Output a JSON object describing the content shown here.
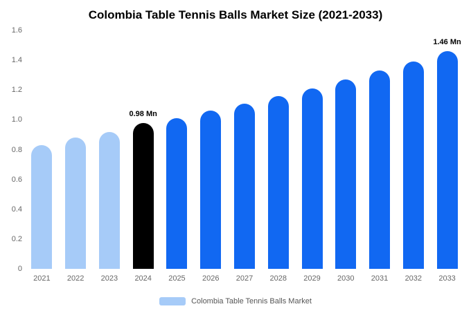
{
  "chart_data": {
    "type": "bar",
    "title": "Colombia Table Tennis Balls Market Size (2021-2033)",
    "unit": "Mn",
    "categories": [
      "2021",
      "2022",
      "2023",
      "2024",
      "2025",
      "2026",
      "2027",
      "2028",
      "2029",
      "2030",
      "2031",
      "2032",
      "2033"
    ],
    "values": [
      0.83,
      0.88,
      0.92,
      0.98,
      1.01,
      1.06,
      1.11,
      1.16,
      1.21,
      1.27,
      1.33,
      1.39,
      1.46
    ],
    "ylim": [
      0,
      1.6
    ],
    "yticks": [
      0,
      0.2,
      0.4,
      0.6,
      0.8,
      1.0,
      1.2,
      1.4,
      1.6
    ],
    "ytick_labels": [
      "0",
      "0.2",
      "0.4",
      "0.6",
      "0.8",
      "1.0",
      "1.2",
      "1.4",
      "1.6"
    ],
    "grid": false,
    "bar_colors": [
      "#A6CBF8",
      "#A6CBF8",
      "#A6CBF8",
      "#000000",
      "#1168F2",
      "#1168F2",
      "#1168F2",
      "#1168F2",
      "#1168F2",
      "#1168F2",
      "#1168F2",
      "#1168F2",
      "#1168F2"
    ],
    "annotations": [
      {
        "category": "2024",
        "text": "0.98 Mn"
      },
      {
        "category": "2033",
        "text": "1.46 Mn"
      }
    ],
    "legend_position": "bottom",
    "legend": {
      "label": "Colombia Table Tennis Balls Market",
      "swatch_color": "#A6CBF8"
    }
  }
}
